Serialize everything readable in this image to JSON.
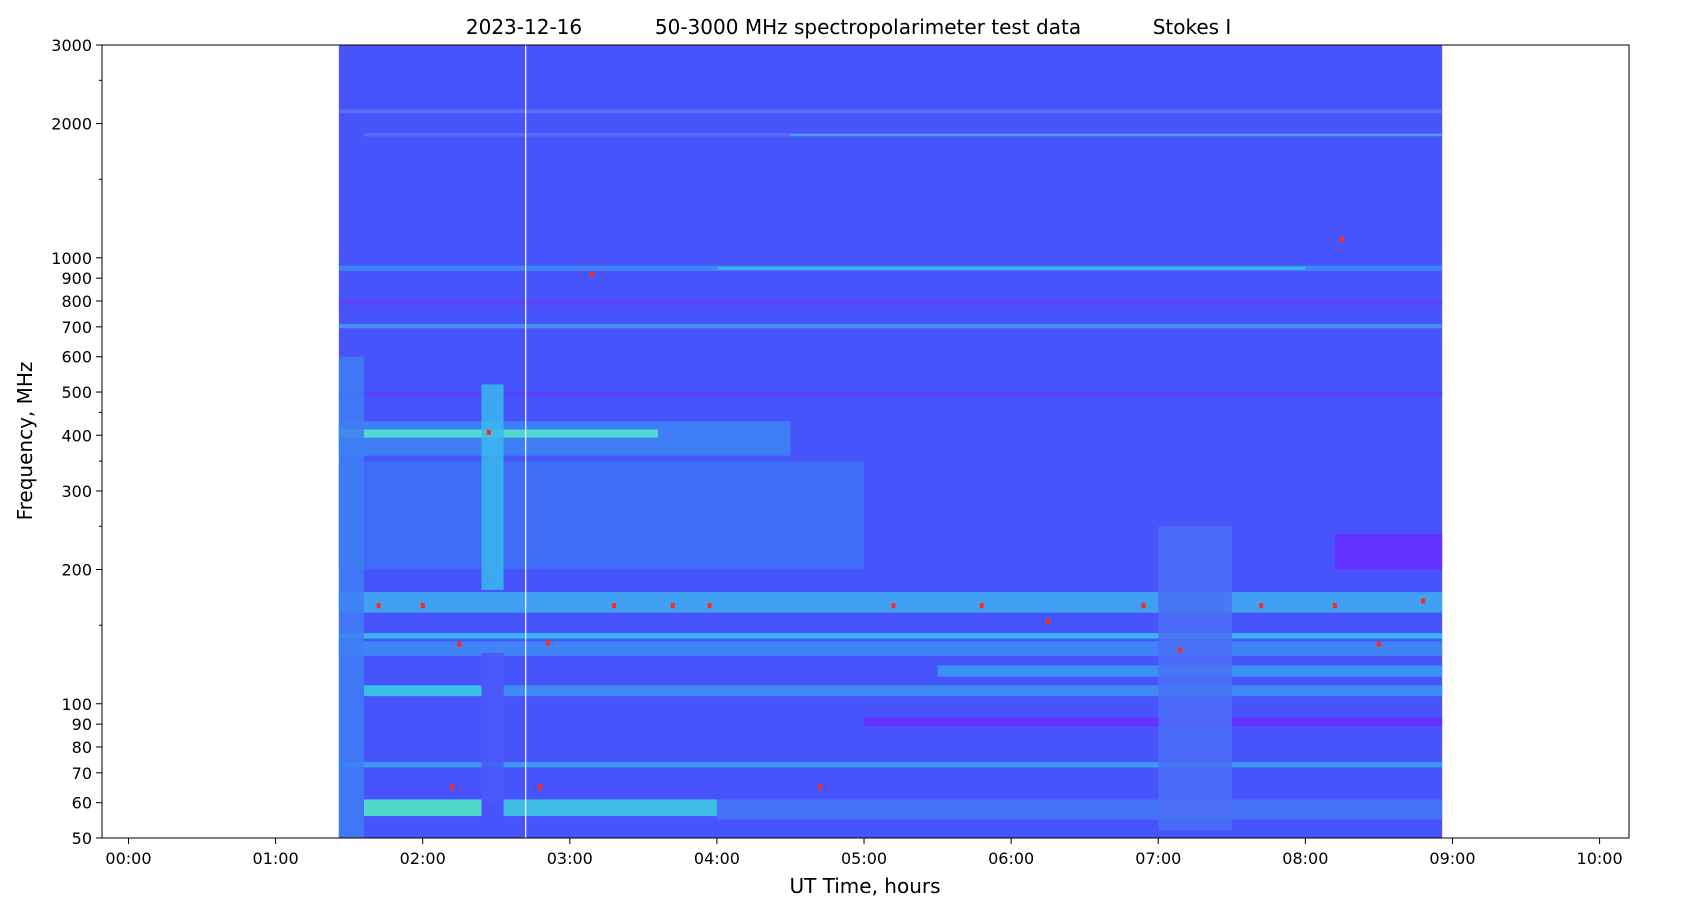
{
  "chart_data": {
    "type": "spectrogram",
    "title_parts": [
      "2023-12-16",
      "50-3000 MHz spectropolarimeter test data",
      "Stokes I"
    ],
    "x_label": "UT Time, hours",
    "y_label": "Frequency, MHz",
    "xlim": [
      -0.18,
      10.2
    ],
    "xticks": [
      {
        "value": 0,
        "label": "00:00"
      },
      {
        "value": 1,
        "label": "01:00"
      },
      {
        "value": 2,
        "label": "02:00"
      },
      {
        "value": 3,
        "label": "03:00"
      },
      {
        "value": 4,
        "label": "04:00"
      },
      {
        "value": 5,
        "label": "05:00"
      },
      {
        "value": 6,
        "label": "06:00"
      },
      {
        "value": 7,
        "label": "07:00"
      },
      {
        "value": 8,
        "label": "08:00"
      },
      {
        "value": 9,
        "label": "09:00"
      },
      {
        "value": 10,
        "label": "10:00"
      }
    ],
    "ylim": [
      50,
      3000
    ],
    "log_y": true,
    "yticks": [
      50,
      60,
      70,
      80,
      90,
      100,
      200,
      300,
      400,
      500,
      600,
      700,
      800,
      900,
      1000,
      2000,
      3000
    ],
    "minor_yticks": [
      150,
      250,
      350,
      450,
      1500,
      2500
    ],
    "data_extent": [
      1.43,
      8.93
    ],
    "background": "#4854fb",
    "marker_time": 2.7,
    "marker_color": "#ffffff",
    "bands": [
      {
        "t0": 1.43,
        "t1": 8.93,
        "lo": 2110,
        "hi": 2150,
        "color": "#5a78fa"
      },
      {
        "t0": 1.6,
        "t1": 8.93,
        "lo": 1870,
        "hi": 1905,
        "color": "#5f70f6"
      },
      {
        "t0": 4.5,
        "t1": 8.93,
        "lo": 1875,
        "hi": 1895,
        "color": "#40a8f2"
      },
      {
        "t0": 1.43,
        "t1": 8.93,
        "lo": 935,
        "hi": 960,
        "color": "#3f8ef4"
      },
      {
        "t0": 4.0,
        "t1": 8.0,
        "lo": 940,
        "hi": 955,
        "color": "#38c0ec"
      },
      {
        "t0": 1.43,
        "t1": 8.93,
        "lo": 785,
        "hi": 800,
        "color": "#7238fd"
      },
      {
        "t0": 1.43,
        "t1": 8.93,
        "lo": 695,
        "hi": 710,
        "color": "#4a98f3"
      },
      {
        "t0": 1.43,
        "t1": 8.93,
        "lo": 490,
        "hi": 500,
        "color": "#5a40fd"
      },
      {
        "t0": 1.43,
        "t1": 4.5,
        "lo": 360,
        "hi": 430,
        "color": "#3c86f4"
      },
      {
        "t0": 1.43,
        "t1": 3.6,
        "lo": 395,
        "hi": 412,
        "color": "#55e8c8"
      },
      {
        "t0": 1.43,
        "t1": 5.0,
        "lo": 200,
        "hi": 350,
        "color": "#4070f6"
      },
      {
        "t0": 1.43,
        "t1": 8.93,
        "lo": 160,
        "hi": 178,
        "color": "#3faeef"
      },
      {
        "t0": 1.43,
        "t1": 8.93,
        "lo": 140,
        "hi": 144,
        "color": "#38c8e8"
      },
      {
        "t0": 1.43,
        "t1": 8.93,
        "lo": 128,
        "hi": 138,
        "color": "#3e8cf4"
      },
      {
        "t0": 5.5,
        "t1": 8.93,
        "lo": 115,
        "hi": 122,
        "color": "#3a9cf2"
      },
      {
        "t0": 1.6,
        "t1": 2.4,
        "lo": 104,
        "hi": 110,
        "color": "#38d4e2"
      },
      {
        "t0": 2.55,
        "t1": 8.93,
        "lo": 104,
        "hi": 110,
        "color": "#3e98f2"
      },
      {
        "t0": 5.0,
        "t1": 8.93,
        "lo": 89,
        "hi": 93,
        "color": "#6a2cfe"
      },
      {
        "t0": 8.2,
        "t1": 8.93,
        "lo": 200,
        "hi": 240,
        "color": "#6a2cfe"
      },
      {
        "t0": 1.43,
        "t1": 8.93,
        "lo": 72,
        "hi": 74,
        "color": "#3aa8f0"
      },
      {
        "t0": 1.6,
        "t1": 2.4,
        "lo": 56,
        "hi": 61,
        "color": "#4ff2c4"
      },
      {
        "t0": 2.55,
        "t1": 4.0,
        "lo": 56,
        "hi": 61,
        "color": "#3fd0e0"
      },
      {
        "t0": 4.0,
        "t1": 8.93,
        "lo": 55,
        "hi": 61,
        "color": "#4478f5"
      },
      {
        "t0": 1.43,
        "t1": 1.6,
        "lo": 50,
        "hi": 600,
        "color": "#3e7ef5"
      },
      {
        "t0": 2.4,
        "t1": 2.55,
        "lo": 180,
        "hi": 520,
        "color": "#3ab8ee"
      },
      {
        "t0": 2.4,
        "t1": 2.55,
        "lo": 60,
        "hi": 130,
        "color": "#4a58fa"
      },
      {
        "t0": 7.0,
        "t1": 7.5,
        "lo": 52,
        "hi": 250,
        "color": "#4a70f6"
      }
    ],
    "spots": [
      {
        "t": 1.7,
        "f": 166,
        "color": "#ff2a1a"
      },
      {
        "t": 2.0,
        "f": 166,
        "color": "#ff2a1a"
      },
      {
        "t": 2.25,
        "f": 136,
        "color": "#ff2a1a"
      },
      {
        "t": 2.45,
        "f": 406,
        "color": "#ff2a1a"
      },
      {
        "t": 2.2,
        "f": 65,
        "color": "#ff2a1a"
      },
      {
        "t": 2.8,
        "f": 65,
        "color": "#ff2a1a"
      },
      {
        "t": 2.85,
        "f": 137,
        "color": "#ff2a1a"
      },
      {
        "t": 3.3,
        "f": 166,
        "color": "#ff2a1a"
      },
      {
        "t": 3.7,
        "f": 166,
        "color": "#ff2a1a"
      },
      {
        "t": 3.95,
        "f": 166,
        "color": "#ff2a1a"
      },
      {
        "t": 4.7,
        "f": 65,
        "color": "#ff2a1a"
      },
      {
        "t": 5.2,
        "f": 166,
        "color": "#ff2a1a"
      },
      {
        "t": 5.8,
        "f": 166,
        "color": "#ff2a1a"
      },
      {
        "t": 6.25,
        "f": 153,
        "color": "#ff2a1a"
      },
      {
        "t": 6.9,
        "f": 166,
        "color": "#ff2a1a"
      },
      {
        "t": 7.15,
        "f": 132,
        "color": "#ff2a1a"
      },
      {
        "t": 7.7,
        "f": 166,
        "color": "#ff2a1a"
      },
      {
        "t": 8.2,
        "f": 166,
        "color": "#ff2a1a"
      },
      {
        "t": 8.5,
        "f": 136,
        "color": "#ff2a1a"
      },
      {
        "t": 8.8,
        "f": 170,
        "color": "#ff2a1a"
      },
      {
        "t": 8.25,
        "f": 1100,
        "color": "#ff2a1a"
      },
      {
        "t": 3.15,
        "f": 920,
        "color": "#ff2a1a"
      }
    ]
  }
}
